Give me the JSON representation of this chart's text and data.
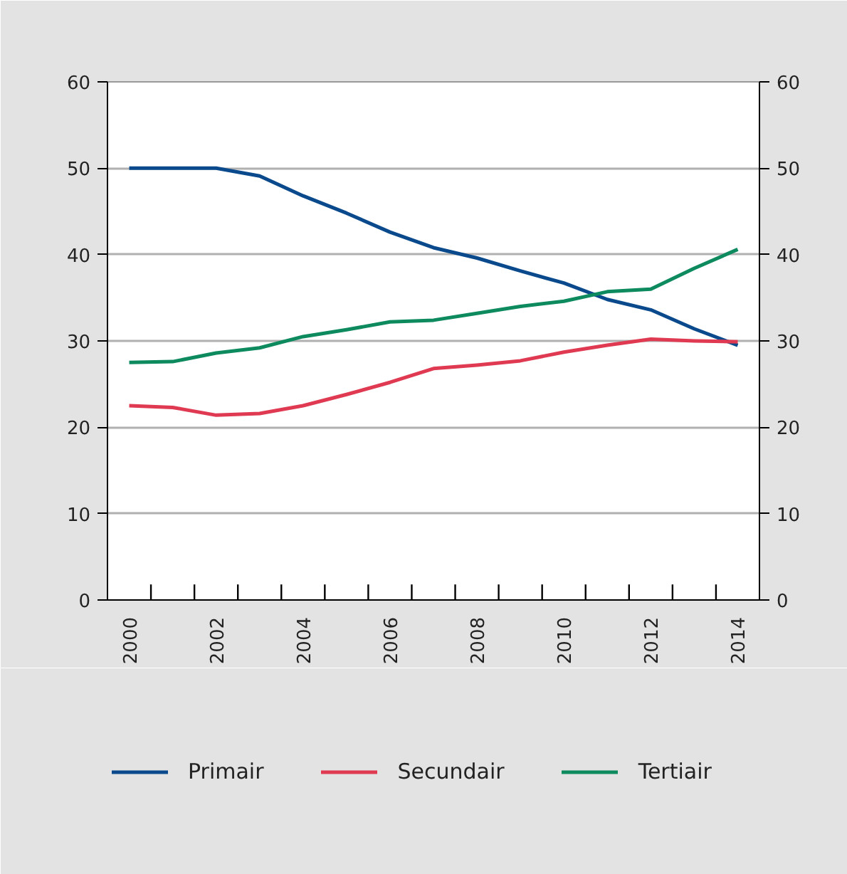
{
  "chart_data": {
    "type": "line",
    "x": [
      2000,
      2001,
      2002,
      2003,
      2004,
      2005,
      2006,
      2007,
      2008,
      2009,
      2010,
      2011,
      2012,
      2013,
      2014
    ],
    "series": [
      {
        "name": "Primair",
        "color": "#0a4a8c",
        "values": [
          50,
          50,
          50,
          49.1,
          46.8,
          44.8,
          42.6,
          40.8,
          39.6,
          38.1,
          36.7,
          34.8,
          33.6,
          31.4,
          29.5
        ]
      },
      {
        "name": "Secundair",
        "color": "#e03a52",
        "values": [
          22.5,
          22.3,
          21.4,
          21.6,
          22.5,
          23.8,
          25.2,
          26.8,
          27.2,
          27.7,
          28.7,
          29.5,
          30.2,
          30.0,
          29.9
        ]
      },
      {
        "name": "Tertiair",
        "color": "#0e8a5f",
        "values": [
          27.5,
          27.6,
          28.6,
          29.2,
          30.5,
          31.3,
          32.2,
          32.4,
          33.2,
          34.0,
          34.6,
          35.7,
          36.0,
          38.4,
          40.6
        ]
      }
    ],
    "xlim": [
      1999.5,
      2014.5
    ],
    "xticks": [
      2000,
      {
        "value": 2000.5,
        "label": null
      },
      {
        "value": 2001.5,
        "label": null
      },
      2002,
      {
        "value": 2002.5,
        "label": null
      },
      {
        "value": 2003.5,
        "label": null
      },
      2004,
      {
        "value": 2004.5,
        "label": null
      },
      {
        "value": 2005.5,
        "label": null
      },
      2006,
      {
        "value": 2006.5,
        "label": null
      },
      {
        "value": 2007.5,
        "label": null
      },
      2008,
      {
        "value": 2008.5,
        "label": null
      },
      {
        "value": 2009.5,
        "label": null
      },
      2010,
      {
        "value": 2010.5,
        "label": null
      },
      {
        "value": 2011.5,
        "label": null
      },
      2012,
      {
        "value": 2012.5,
        "label": null
      },
      {
        "value": 2013.5,
        "label": null
      },
      2014
    ],
    "ylim": [
      0,
      60
    ],
    "yticks": [
      0,
      10,
      20,
      30,
      40,
      50,
      60
    ],
    "y2lim": [
      0,
      60
    ],
    "y2ticks": [
      0,
      10,
      20,
      30,
      40,
      50,
      60
    ],
    "grid": "y",
    "legend": "bottom",
    "line_style": "solid",
    "marker": "none"
  }
}
